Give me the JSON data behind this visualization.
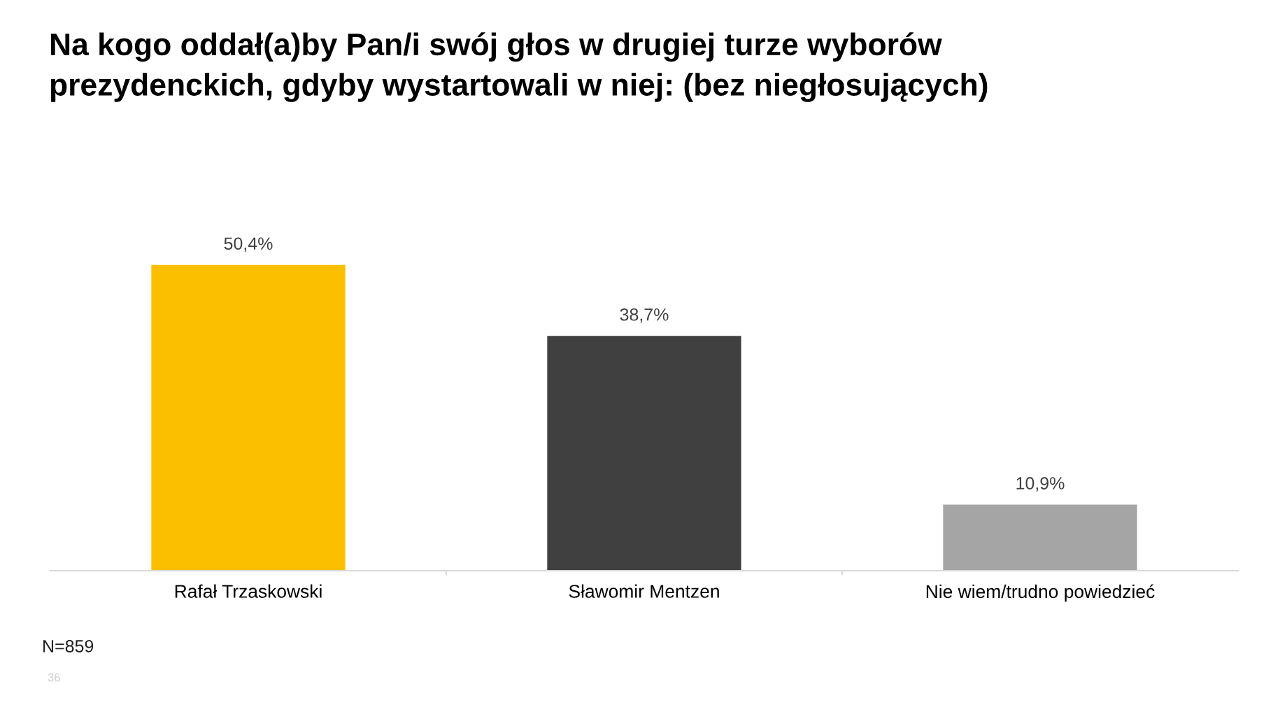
{
  "chart_data": {
    "type": "bar",
    "title": "Na kogo oddał(a)by Pan/i swój głos w drugiej turze wyborów\nprezydenckich, gdyby wystartowali w niej: (bez niegłosujących)",
    "categories": [
      "Rafał Trzaskowski",
      "Sławomir Mentzen",
      "Nie wiem/trudno powiedzieć"
    ],
    "values": [
      50.4,
      38.7,
      10.9
    ],
    "colors": [
      "#fbbf00",
      "#404040",
      "#a5a5a5"
    ],
    "value_labels": [
      "50,4%",
      "38,7%",
      "10,9%"
    ],
    "annotations": [
      "N=859",
      "36"
    ],
    "grid": false,
    "legend": false
  }
}
